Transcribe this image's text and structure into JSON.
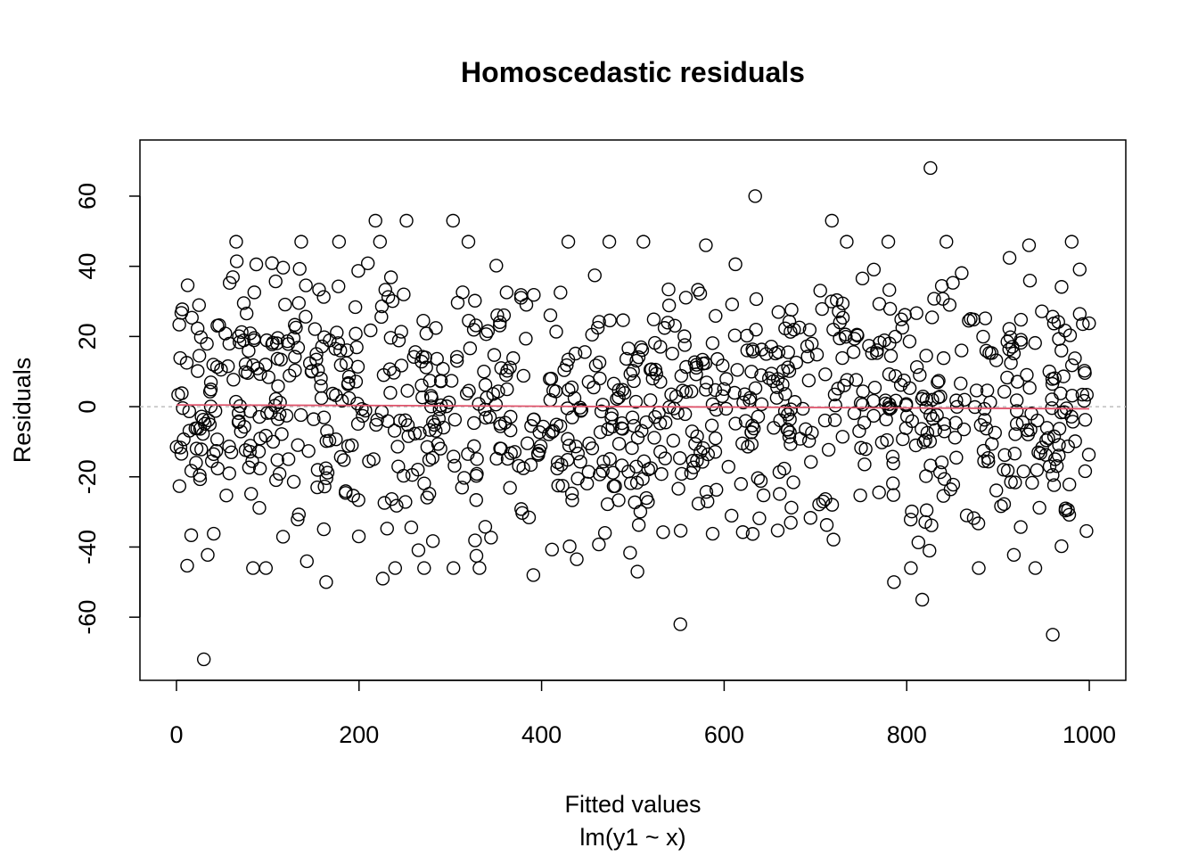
{
  "chart_data": {
    "type": "scatter",
    "title": "Homoscedastic residuals",
    "xlabel": "Fitted values",
    "sublabel": "lm(y1 ~ x)",
    "ylabel": "Residuals",
    "xlim": [
      -40,
      1040
    ],
    "ylim": [
      -78,
      76
    ],
    "xticks": [
      0,
      200,
      400,
      600,
      800,
      1000
    ],
    "yticks": [
      -60,
      -40,
      -20,
      0,
      20,
      40,
      60
    ],
    "grid": false,
    "n_points": 1000,
    "residual_sd": 20,
    "notable_points": [
      {
        "x": 30,
        "y": -72
      },
      {
        "x": 826,
        "y": 68
      },
      {
        "x": 960,
        "y": -65
      },
      {
        "x": 552,
        "y": -62
      },
      {
        "x": 634,
        "y": 60
      },
      {
        "x": 817,
        "y": -55
      },
      {
        "x": 218,
        "y": 53
      },
      {
        "x": 252,
        "y": 53
      },
      {
        "x": 303,
        "y": 53
      },
      {
        "x": 718,
        "y": 53
      },
      {
        "x": 164,
        "y": -50
      },
      {
        "x": 226,
        "y": -49
      },
      {
        "x": 391,
        "y": -48
      },
      {
        "x": 505,
        "y": -47
      },
      {
        "x": 786,
        "y": -50
      },
      {
        "x": 98,
        "y": -46
      },
      {
        "x": 934,
        "y": 46
      },
      {
        "x": 580,
        "y": 46
      }
    ],
    "reference_line": {
      "y": 0,
      "color": "#bebebe",
      "style": "dashed"
    },
    "smoother": {
      "color": "#df536b",
      "points": [
        [
          0,
          0.5
        ],
        [
          250,
          0.3
        ],
        [
          500,
          0
        ],
        [
          750,
          -0.3
        ],
        [
          1000,
          -0.6
        ]
      ]
    },
    "point_color": "#000000"
  }
}
